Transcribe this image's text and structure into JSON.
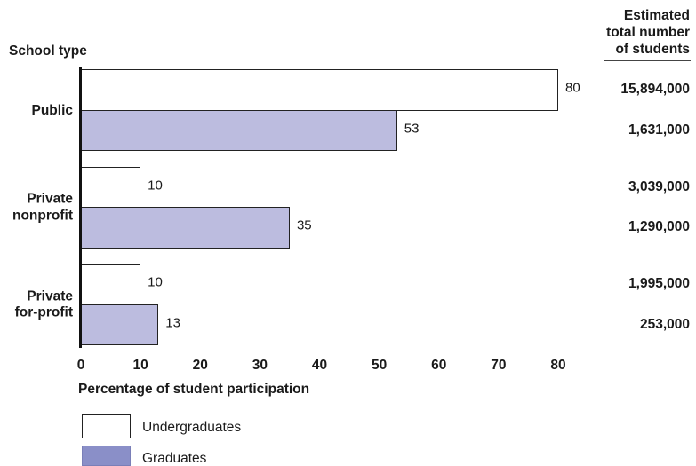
{
  "chart_data": {
    "type": "bar",
    "orientation": "horizontal",
    "ylabel": "School type",
    "xlabel": "Percentage of student participation",
    "right_column_title": "Estimated total number of students",
    "categories": [
      "Public",
      "Private nonprofit",
      "Private for-profit"
    ],
    "series": [
      {
        "name": "Undergraduates",
        "values": [
          80,
          10,
          10
        ],
        "estimated_students": [
          "15,894,000",
          "3,039,000",
          "1,995,000"
        ],
        "color": "#ffffff",
        "legend_color": "#ffffff"
      },
      {
        "name": "Graduates",
        "values": [
          53,
          35,
          13
        ],
        "estimated_students": [
          "1,631,000",
          "1,290,000",
          "253,000"
        ],
        "color": "#bcbcdf",
        "legend_color": "#8a8fc8"
      }
    ],
    "xlim": [
      0,
      80
    ],
    "xticks": [
      0,
      10,
      20,
      30,
      40,
      50,
      60,
      70,
      80
    ],
    "edge_color": "#222222",
    "grid": false,
    "legend_placement": "bottom-left"
  }
}
